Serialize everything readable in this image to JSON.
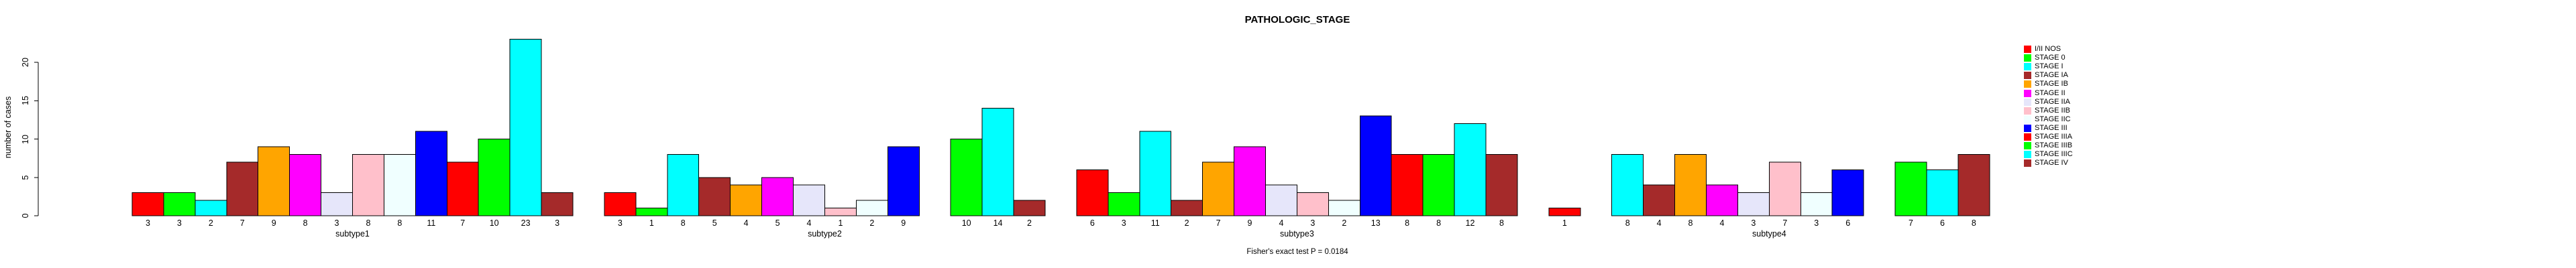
{
  "chart_data": {
    "type": "bar",
    "title": "PATHOLOGIC_STAGE",
    "ylabel": "number of cases",
    "xlabel": "",
    "ylim": [
      0,
      20
    ],
    "yticks": [
      0,
      5,
      10,
      15,
      20
    ],
    "grid": false,
    "legend_position": "right",
    "annotation": "Fisher's exact test P = 0.0184",
    "stages": [
      {
        "label": "I/II NOS",
        "color": "#FF0000"
      },
      {
        "label": "STAGE 0",
        "color": "#00FF00"
      },
      {
        "label": "STAGE I",
        "color": "#00FFFF"
      },
      {
        "label": "STAGE IA",
        "color": "#A52A2A"
      },
      {
        "label": "STAGE IB",
        "color": "#FFA500"
      },
      {
        "label": "STAGE II",
        "color": "#FF00FF"
      },
      {
        "label": "STAGE IIA",
        "color": "#E6E6FA"
      },
      {
        "label": "STAGE IIB",
        "color": "#FFC0CB"
      },
      {
        "label": "STAGE IIC",
        "color": "#F0FFFF"
      },
      {
        "label": "STAGE III",
        "color": "#0000FF"
      },
      {
        "label": "STAGE IIIA",
        "color": "#FF0000"
      },
      {
        "label": "STAGE IIIB",
        "color": "#00FF00"
      },
      {
        "label": "STAGE IIIC",
        "color": "#00FFFF"
      },
      {
        "label": "STAGE IV",
        "color": "#A52A2A"
      }
    ],
    "groups": [
      {
        "label": "subtype1",
        "values": [
          3,
          3,
          2,
          7,
          9,
          8,
          3,
          8,
          8,
          11,
          7,
          10,
          23,
          3
        ]
      },
      {
        "label": "subtype2",
        "values": [
          3,
          1,
          8,
          5,
          4,
          5,
          4,
          1,
          2,
          9,
          0,
          10,
          14,
          2
        ]
      },
      {
        "label": "subtype3",
        "values": [
          6,
          3,
          11,
          2,
          7,
          9,
          4,
          3,
          2,
          13,
          8,
          8,
          12,
          8
        ]
      },
      {
        "label": "subtype4",
        "values": [
          1,
          0,
          8,
          4,
          8,
          4,
          3,
          7,
          3,
          6,
          0,
          7,
          6,
          8
        ]
      }
    ]
  }
}
